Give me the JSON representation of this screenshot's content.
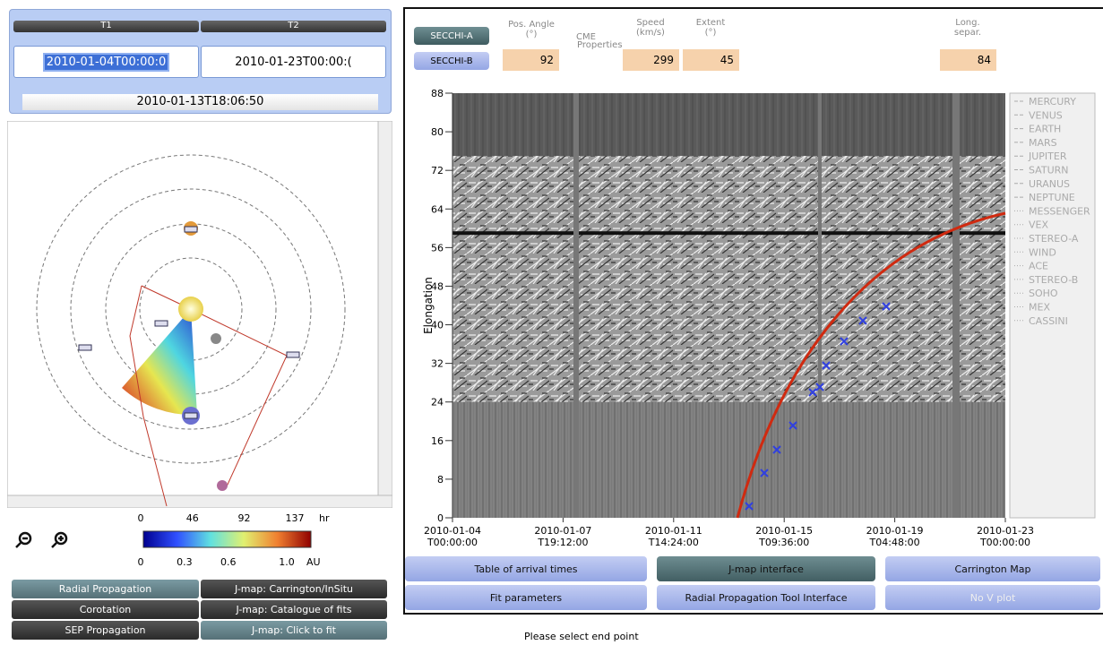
{
  "time_panel": {
    "t1_label": "T1",
    "t2_label": "T2",
    "t1_value": "2010-01-04T00:00:0",
    "t2_value": "2010-01-23T00:00:(",
    "current": "2010-01-13T18:06:50"
  },
  "colorbar": {
    "time_ticks": [
      0,
      46,
      92,
      137
    ],
    "time_unit": "hr",
    "dist_ticks": [
      0,
      0.3,
      0.6,
      {
        "value": 1,
        "label": "1.0"
      }
    ],
    "dist_unit": "AU"
  },
  "left_buttons": [
    [
      "Radial Propagation",
      "J-map: Carrington/InSitu"
    ],
    [
      "Corotation",
      "J-map: Catalogue of fits"
    ],
    [
      "SEP Propagation",
      "J-map: Click to fit"
    ]
  ],
  "cme": {
    "secchi_a": "SECCHI-A",
    "secchi_b": "SECCHI-B",
    "pos_angle_label": [
      "Pos. Angle",
      "(°)"
    ],
    "properties_label": [
      "CME",
      "Properties"
    ],
    "speed_label": [
      "Speed",
      "(km/s)"
    ],
    "extent_label": [
      "Extent",
      "(°)"
    ],
    "long_label": [
      "Long.",
      "separ."
    ],
    "pos_angle": "92",
    "speed": "299",
    "extent": "45",
    "long_separ": "84"
  },
  "jmap": {
    "y_label": "Elongation",
    "ylim": [
      0,
      88
    ],
    "yticks": [
      0,
      8,
      16,
      24,
      32,
      40,
      48,
      56,
      64,
      72,
      80,
      88
    ],
    "xticks": [
      [
        "2010-01-04",
        "T00:00:00"
      ],
      [
        "2010-01-07",
        "T19:12:00"
      ],
      [
        "2010-01-11",
        "T14:24:00"
      ],
      [
        "2010-01-15",
        "T09:36:00"
      ],
      [
        "2010-01-19",
        "T04:48:00"
      ],
      [
        "2010-01-23",
        "T00:00:00"
      ]
    ],
    "objects": [
      "MERCURY",
      "VENUS",
      "EARTH",
      "MARS",
      "JUPITER",
      "SATURN",
      "URANUS",
      "NEPTUNE",
      "MESSENGER",
      "VEX",
      "STEREO-A",
      "WIND",
      "ACE",
      "STEREO-B",
      "SOHO",
      "MEX",
      "CASSINI"
    ]
  },
  "bottom_buttons": [
    [
      "Table of arrival times",
      "J-map interface",
      "Carrington Map"
    ],
    [
      "Fit parameters",
      "Radial Propagation Tool Interface",
      "No V plot"
    ]
  ],
  "status": "Please select end point"
}
